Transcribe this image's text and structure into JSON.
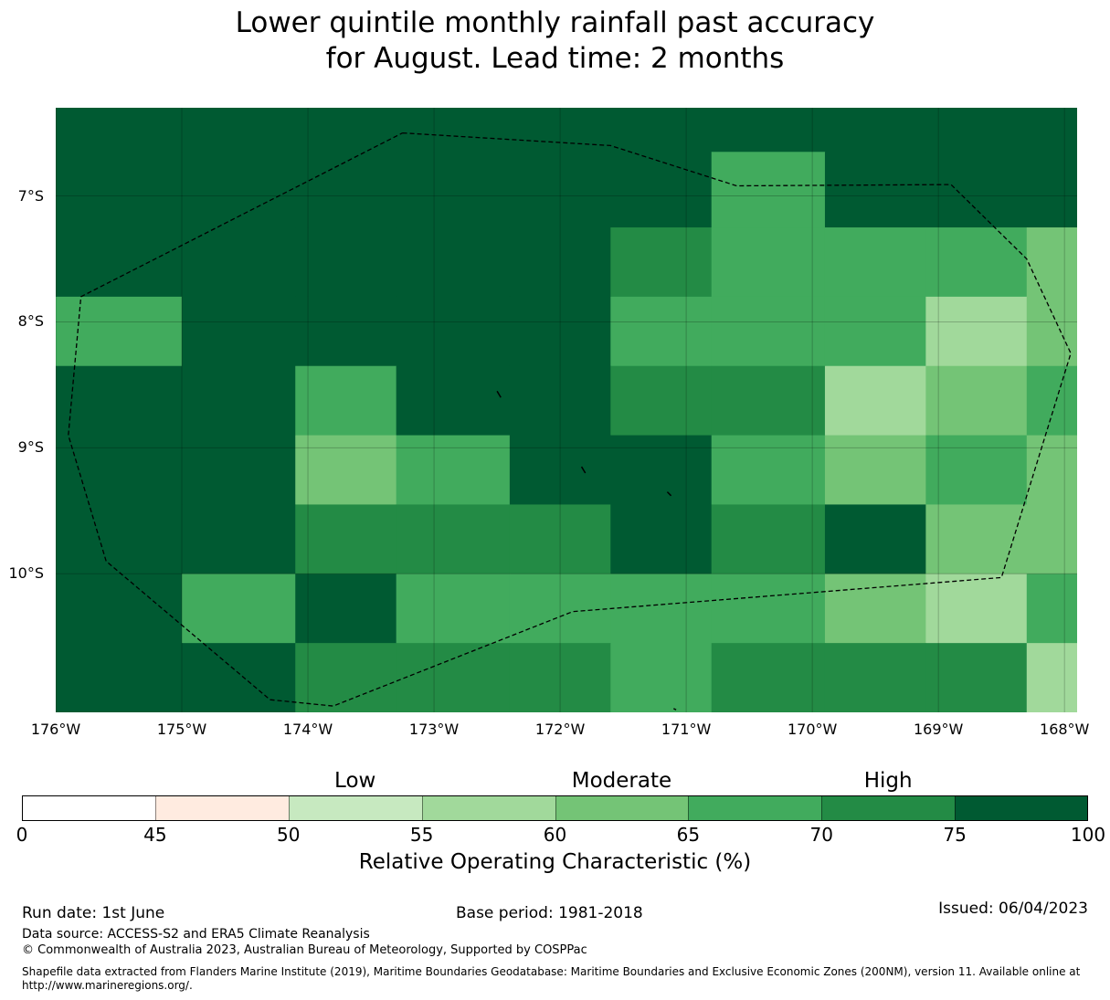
{
  "title": {
    "line1": "Lower quintile monthly rainfall past accuracy",
    "line2": "for August. Lead time: 2 months"
  },
  "map": {
    "lon_range": [
      -176,
      -167.9
    ],
    "lat_range": [
      -6.3,
      -11.1
    ],
    "grid_lon_edges": [
      -176,
      -175,
      -174.1,
      -173.3,
      -172.4,
      -171.6,
      -170.8,
      -169.9,
      -169.1,
      -168.3,
      -167.9
    ],
    "grid_lat_edges": [
      -6.3,
      -6.65,
      -7.25,
      -7.8,
      -8.35,
      -8.9,
      -9.45,
      -10.0,
      -10.55,
      -11.1
    ],
    "cells": [
      [
        7,
        7,
        7,
        7,
        7,
        7,
        7,
        7,
        7,
        7
      ],
      [
        7,
        7,
        7,
        7,
        7,
        7,
        5,
        7,
        7,
        7
      ],
      [
        7,
        7,
        7,
        7,
        7,
        6,
        5,
        5,
        5,
        4
      ],
      [
        5,
        7,
        7,
        7,
        7,
        5,
        5,
        5,
        3,
        4
      ],
      [
        7,
        7,
        5,
        7,
        7,
        6,
        6,
        3,
        4,
        5
      ],
      [
        7,
        7,
        4,
        5,
        7,
        7,
        5,
        4,
        5,
        4
      ],
      [
        7,
        7,
        6,
        6,
        6,
        7,
        6,
        7,
        4,
        4
      ],
      [
        7,
        5,
        7,
        5,
        5,
        5,
        5,
        4,
        3,
        5
      ],
      [
        7,
        7,
        6,
        6,
        6,
        5,
        6,
        6,
        6,
        3
      ]
    ],
    "eez_boundary": [
      [
        -173.25,
        -6.5
      ],
      [
        -171.6,
        -6.6
      ],
      [
        -170.6,
        -6.92
      ],
      [
        -168.9,
        -6.91
      ],
      [
        -168.3,
        -7.5
      ],
      [
        -167.95,
        -8.25
      ],
      [
        -168.5,
        -10.03
      ],
      [
        -171.9,
        -10.3
      ],
      [
        -173.8,
        -11.05
      ],
      [
        -174.3,
        -11.0
      ],
      [
        -175.6,
        -9.9
      ],
      [
        -175.9,
        -8.9
      ],
      [
        -175.8,
        -7.8
      ],
      [
        -173.25,
        -6.5
      ]
    ],
    "islands": [
      [
        [
          -172.5,
          -8.55
        ],
        [
          -172.47,
          -8.6
        ]
      ],
      [
        [
          -171.83,
          -9.15
        ],
        [
          -171.8,
          -9.2
        ]
      ],
      [
        [
          -171.15,
          -9.35
        ],
        [
          -171.12,
          -9.38
        ]
      ],
      [
        [
          -171.1,
          -11.07
        ],
        [
          -171.08,
          -11.08
        ]
      ]
    ],
    "lat_ticks": [
      {
        "value": -7,
        "label": "7°S"
      },
      {
        "value": -8,
        "label": "8°S"
      },
      {
        "value": -9,
        "label": "9°S"
      },
      {
        "value": -10,
        "label": "10°S"
      }
    ],
    "lon_ticks": [
      {
        "value": -176,
        "label": "176°W"
      },
      {
        "value": -175,
        "label": "175°W"
      },
      {
        "value": -174,
        "label": "174°W"
      },
      {
        "value": -173,
        "label": "173°W"
      },
      {
        "value": -172,
        "label": "172°W"
      },
      {
        "value": -171,
        "label": "171°W"
      },
      {
        "value": -170,
        "label": "170°W"
      },
      {
        "value": -169,
        "label": "169°W"
      },
      {
        "value": -168,
        "label": "168°W"
      }
    ]
  },
  "colorbar": {
    "boundaries": [
      0,
      45,
      50,
      55,
      60,
      65,
      70,
      75,
      100
    ],
    "colors": [
      "#ffffff",
      "#ffebe0",
      "#c7e9c0",
      "#a1d99b",
      "#74c476",
      "#41ab5d",
      "#238b45",
      "#005a32"
    ],
    "tick_labels": [
      "0",
      "45",
      "50",
      "55",
      "60",
      "65",
      "70",
      "75",
      "100"
    ],
    "categories": [
      {
        "label": "Low",
        "at": 52.5
      },
      {
        "label": "Moderate",
        "at": 62.5
      },
      {
        "label": "High",
        "at": 72.5
      }
    ],
    "label": "Relative Operating Characteristic (%)"
  },
  "footer": {
    "run_date": "Run date: 1st June",
    "base_period": "Base period: 1981-2018",
    "issued": "Issued: 06/04/2023",
    "data_source": "Data source: ACCESS-S2 and ERA5 Climate Reanalysis",
    "copyright": "© Commonwealth of Australia 2023, Australian Bureau of Meteorology, Supported by COSPPac",
    "shapefile_line1": "Shapefile data extracted from Flanders Marine Institute (2019), Maritime Boundaries Geodatabase: Maritime Boundaries and Exclusive Economic Zones (200NM), version 11. Available online at",
    "shapefile_line2": "http://www.marineregions.org/."
  }
}
